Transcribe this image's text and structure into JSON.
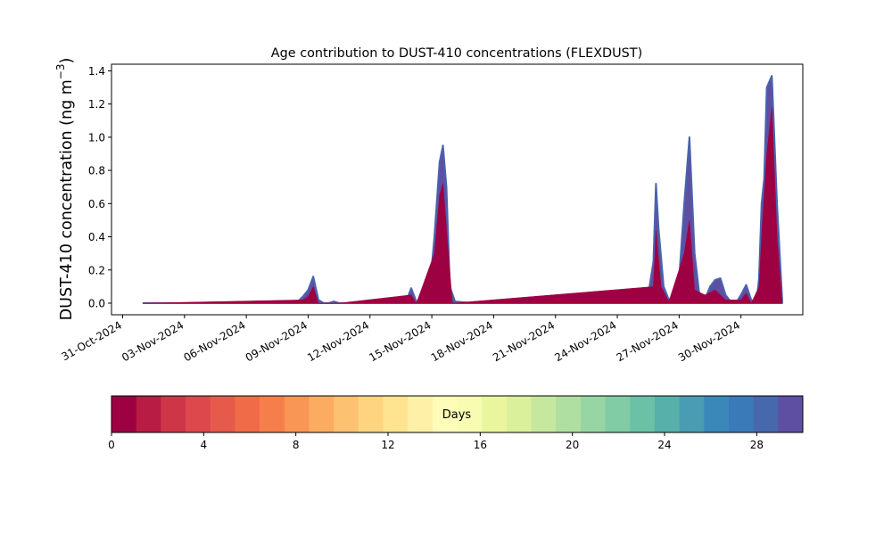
{
  "chart_data": {
    "type": "area",
    "title": "Age contribution to DUST-410 concentrations (FLEXDUST)",
    "ylabel": "DUST-410 concentration (ng m⁻³)",
    "ylabel_main": "DUST-410 concentration (ng m",
    "ylabel_sup": "−3",
    "ylabel_close": ")",
    "xlabel": "",
    "xlim": [
      "2024-10-30T11:00",
      "2024-12-03T00:00"
    ],
    "ylim": [
      -0.07,
      1.44
    ],
    "yticks": [
      0.0,
      0.2,
      0.4,
      0.6,
      0.8,
      1.0,
      1.2,
      1.4
    ],
    "ytick_labels": [
      "0.0",
      "0.2",
      "0.4",
      "0.6",
      "0.8",
      "1.0",
      "1.2",
      "1.4"
    ],
    "xticks": [
      "2024-10-31",
      "2024-11-03",
      "2024-11-06",
      "2024-11-09",
      "2024-11-12",
      "2024-11-15",
      "2024-11-18",
      "2024-11-21",
      "2024-11-24",
      "2024-11-27",
      "2024-11-30"
    ],
    "xtick_labels": [
      "31-Oct-2024",
      "03-Nov-2024",
      "06-Nov-2024",
      "09-Nov-2024",
      "12-Nov-2024",
      "15-Nov-2024",
      "18-Nov-2024",
      "21-Nov-2024",
      "24-Nov-2024",
      "27-Nov-2024",
      "30-Nov-2024"
    ],
    "grid": false,
    "series": [
      {
        "color": "#5e4fa2",
        "x": [
          "2024-11-01T00:00",
          "2024-11-08T06:00",
          "2024-11-08T12:00",
          "2024-11-08T18:00",
          "2024-11-09T00:00",
          "2024-11-09T06:00",
          "2024-11-09T12:00",
          "2024-11-09T18:00",
          "2024-11-10T00:00",
          "2024-11-10T06:00",
          "2024-11-10T12:00",
          "2024-11-10T18:00",
          "2024-11-11T00:00",
          "2024-11-13T12:00",
          "2024-11-13T18:00",
          "2024-11-14T00:00",
          "2024-11-14T06:00",
          "2024-11-14T12:00",
          "2024-11-14T21:00",
          "2024-11-15T03:00",
          "2024-11-15T09:00",
          "2024-11-15T13:00",
          "2024-11-15T17:00",
          "2024-11-15T21:00",
          "2024-11-16T03:00",
          "2024-11-17T00:00",
          "2024-11-23T12:00",
          "2024-11-23T18:00",
          "2024-11-24T00:00",
          "2024-11-25T06:00",
          "2024-11-25T12:00",
          "2024-11-25T18:00",
          "2024-11-25T21:00",
          "2024-11-26T00:00",
          "2024-11-26T06:00",
          "2024-11-26T12:00",
          "2024-11-26T18:00",
          "2024-11-27T00:00",
          "2024-11-27T06:00",
          "2024-11-27T12:00",
          "2024-11-27T18:00",
          "2024-11-28T00:00",
          "2024-11-28T06:00",
          "2024-11-28T12:00",
          "2024-11-28T18:00",
          "2024-11-29T00:00",
          "2024-11-29T06:00",
          "2024-11-29T12:00",
          "2024-11-29T18:00",
          "2024-11-30T00:00",
          "2024-11-30T06:00",
          "2024-11-30T12:00",
          "2024-11-30T18:00",
          "2024-11-30T21:00",
          "2024-12-01T00:00",
          "2024-12-01T03:00",
          "2024-12-01T06:00",
          "2024-12-01T12:00",
          "2024-12-01T18:00",
          "2024-12-02T00:00"
        ],
        "y": [
          0.0,
          0.0,
          0.01,
          0.04,
          0.08,
          0.16,
          0.02,
          0.0,
          0.0,
          0.01,
          0.0,
          0.0,
          0.0,
          0.0,
          0.01,
          0.09,
          0.01,
          0.0,
          0.05,
          0.4,
          0.85,
          0.95,
          0.7,
          0.1,
          0.01,
          0.0,
          0.0,
          0.01,
          0.0,
          0.0,
          0.05,
          0.25,
          0.72,
          0.45,
          0.1,
          0.02,
          0.05,
          0.15,
          0.6,
          1.0,
          0.3,
          0.03,
          0.02,
          0.1,
          0.14,
          0.15,
          0.05,
          0.01,
          0.0,
          0.05,
          0.11,
          0.02,
          0.0,
          0.15,
          0.6,
          0.75,
          1.3,
          1.37,
          0.6,
          0.02
        ]
      },
      {
        "color": "#9e0142",
        "x": [
          "2024-11-01T00:00",
          "2024-11-08T18:00",
          "2024-11-09T00:00",
          "2024-11-09T06:00",
          "2024-11-09T12:00",
          "2024-11-10T00:00",
          "2024-11-10T06:00",
          "2024-11-10T12:00",
          "2024-11-14T00:00",
          "2024-11-14T06:00",
          "2024-11-15T03:00",
          "2024-11-15T09:00",
          "2024-11-15T13:00",
          "2024-11-15T17:00",
          "2024-11-16T00:00",
          "2024-11-25T18:00",
          "2024-11-25T21:00",
          "2024-11-26T03:00",
          "2024-11-26T12:00",
          "2024-11-27T06:00",
          "2024-11-27T12:00",
          "2024-11-27T18:00",
          "2024-11-28T06:00",
          "2024-11-28T18:00",
          "2024-11-29T06:00",
          "2024-11-30T00:00",
          "2024-11-30T06:00",
          "2024-11-30T12:00",
          "2024-11-30T21:00",
          "2024-12-01T00:00",
          "2024-12-01T06:00",
          "2024-12-01T12:00",
          "2024-12-01T18:00",
          "2024-12-02T00:00"
        ],
        "y": [
          0.0,
          0.02,
          0.04,
          0.1,
          0.0,
          0.0,
          0.0,
          0.0,
          0.05,
          0.0,
          0.3,
          0.65,
          0.72,
          0.45,
          0.0,
          0.1,
          0.44,
          0.1,
          0.01,
          0.3,
          0.5,
          0.08,
          0.05,
          0.08,
          0.02,
          0.02,
          0.06,
          0.0,
          0.1,
          0.4,
          0.9,
          1.18,
          0.4,
          0.0
        ]
      }
    ],
    "colorbar": {
      "label": "Days",
      "range": [
        0,
        30
      ],
      "ticks": [
        0,
        4,
        8,
        12,
        16,
        20,
        24,
        28
      ],
      "tick_labels": [
        "0",
        "4",
        "8",
        "12",
        "16",
        "20",
        "24",
        "28"
      ],
      "colors": [
        "#9e0142",
        "#b81b44",
        "#ce3547",
        "#dc484c",
        "#e65a4b",
        "#f06b47",
        "#f67e4b",
        "#f99555",
        "#fcac61",
        "#fdc172",
        "#fed481",
        "#fee491",
        "#fef0a7",
        "#fffbb8",
        "#f7fcb2",
        "#eaf69e",
        "#dbf09a",
        "#c6e89e",
        "#b0dfa2",
        "#97d5a4",
        "#81cba5",
        "#6bc1a5",
        "#58b0aa",
        "#4a9cb3",
        "#3a88b9",
        "#3a7ab8",
        "#4868ad",
        "#5e4fa2"
      ]
    }
  }
}
